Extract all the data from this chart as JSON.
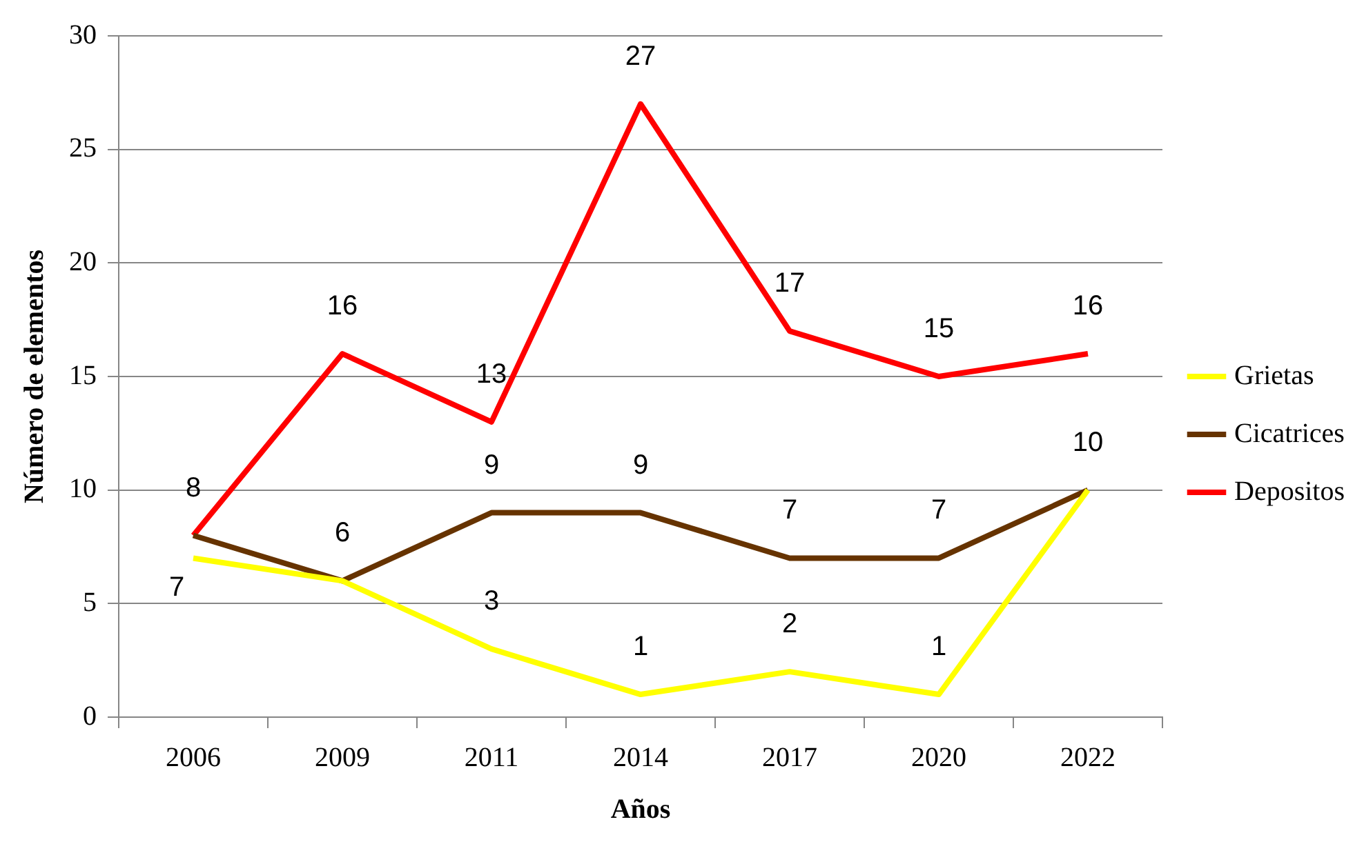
{
  "chart_data": {
    "type": "line",
    "xlabel": "Años",
    "ylabel": "Número de elementos",
    "categories": [
      "2006",
      "2009",
      "2011",
      "2014",
      "2017",
      "2020",
      "2022"
    ],
    "series": [
      {
        "name": "Grietas",
        "color": "#ffff00",
        "values": [
          7,
          6,
          3,
          1,
          2,
          1,
          10
        ],
        "value_labels": [
          "7",
          null,
          "3",
          "1",
          "2",
          "1",
          null
        ]
      },
      {
        "name": "Cicatrices",
        "color": "#663300",
        "values": [
          8,
          6,
          9,
          9,
          7,
          7,
          10
        ],
        "value_labels": [
          "8",
          "6",
          "9",
          "9",
          "7",
          "7",
          "10"
        ]
      },
      {
        "name": "Depositos",
        "color": "#ff0000",
        "values": [
          8,
          16,
          13,
          27,
          17,
          15,
          16
        ],
        "value_labels": [
          null,
          "16",
          "13",
          "27",
          "17",
          "15",
          "16"
        ]
      }
    ],
    "ylim": [
      0,
      30
    ],
    "yticks": [
      0,
      5,
      10,
      15,
      20,
      25,
      30
    ],
    "grid": "y",
    "legend": "right",
    "marker": "none",
    "line_style": "solid"
  }
}
